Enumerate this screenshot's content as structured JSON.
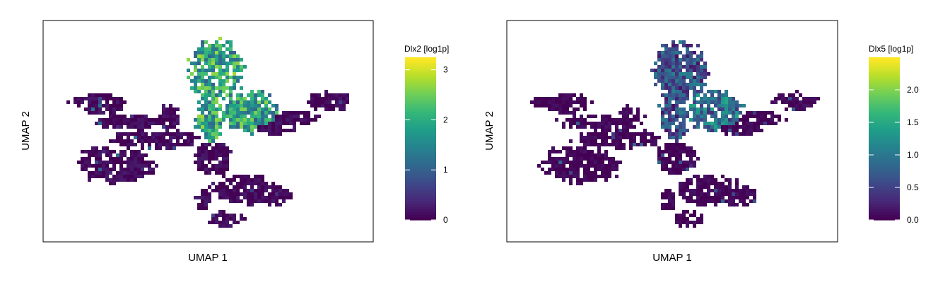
{
  "chart_data": [
    {
      "type": "heatmap",
      "title": "",
      "xlabel": "UMAP 1",
      "ylabel": "UMAP 2",
      "colorbar": {
        "title": "Dlx2 [log1p]",
        "range": [
          0,
          3.25
        ],
        "ticks": [
          "0",
          "1",
          "2",
          "3"
        ],
        "tick_values": [
          0,
          1,
          2,
          3
        ]
      },
      "colormap": "viridis",
      "grid": false,
      "expression_regions": [
        {
          "region": "upper-center lobe",
          "level": 1.9,
          "spread": 0.9
        },
        {
          "region": "right-center lobe",
          "level": 1.8,
          "spread": 0.9
        },
        {
          "region": "body and arms",
          "level": 0.05,
          "spread": 0.2
        }
      ]
    },
    {
      "type": "heatmap",
      "title": "",
      "xlabel": "UMAP 1",
      "ylabel": "UMAP 2",
      "colorbar": {
        "title": "Dlx5 [log1p]",
        "range": [
          0,
          2.5
        ],
        "ticks": [
          "0.0",
          "0.5",
          "1.0",
          "1.5",
          "2.0"
        ],
        "tick_values": [
          0,
          0.5,
          1.0,
          1.5,
          2.0
        ]
      },
      "colormap": "viridis",
      "grid": false,
      "expression_regions": [
        {
          "region": "upper-center lobe",
          "level": 0.6,
          "spread": 0.5
        },
        {
          "region": "right-center lobe",
          "level": 0.9,
          "spread": 0.6
        },
        {
          "region": "body and arms",
          "level": 0.03,
          "spread": 0.1
        }
      ]
    }
  ],
  "colors": {
    "viridis": [
      "#440154",
      "#482878",
      "#3e4989",
      "#31688e",
      "#26828e",
      "#1f9e89",
      "#35b779",
      "#6ece58",
      "#b5de2b",
      "#fde725"
    ],
    "frame": "#000000",
    "background": "#ffffff"
  }
}
